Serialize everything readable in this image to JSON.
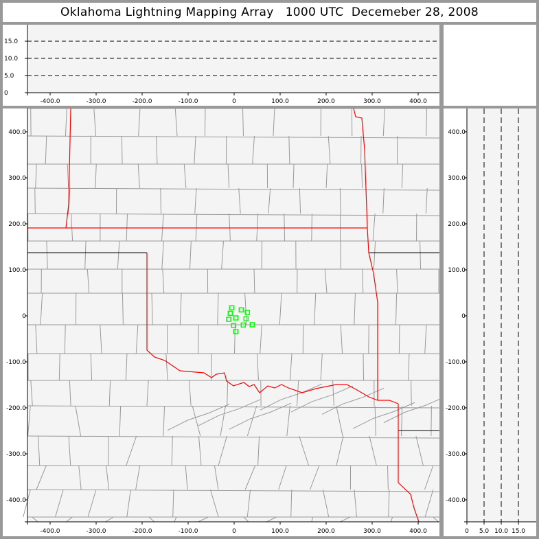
{
  "title": "Oklahoma Lightning Mapping Array   1000 UTC  Decemeber 28, 2008",
  "colors": {
    "background": "#999999",
    "plot_bg": "#f4f4f4",
    "county": "#999999",
    "state_border": "#ff0000",
    "source_marker": "#00ff00"
  },
  "top_panel": {
    "x_ticks": [
      "-400.0",
      "-300.0",
      "-200.0",
      "-100.0",
      "0",
      "100.0",
      "200.0",
      "300.0",
      "400.0"
    ],
    "y_ticks": [
      "0",
      "5.0",
      "10.0",
      "15.0"
    ],
    "gridlines": "dashed at 5, 10, 15"
  },
  "map_panel": {
    "x_ticks": [
      "-400.0",
      "-300.0",
      "-200.0",
      "-100.0",
      "0",
      "100.0",
      "200.0",
      "300.0",
      "400.0"
    ],
    "y_ticks": [
      "400.0",
      "300.0",
      "200.0",
      "100.0",
      "0",
      "-100.0",
      "-200.0",
      "-300.0",
      "-400.0"
    ]
  },
  "right_panel": {
    "x_ticks": [
      "0",
      "5.0",
      "10.0",
      "15.0"
    ],
    "y_ticks": [
      "400.0",
      "300.0",
      "200.0",
      "100.0",
      "0",
      "-100.0",
      "-200.0",
      "-300.0",
      "-400.0"
    ],
    "gridlines": "dashed at 5, 10, 15"
  },
  "chart_data": {
    "type": "scatter",
    "xlim": [
      -450,
      450
    ],
    "ylim": [
      -450,
      450
    ],
    "marker": "hollow-square",
    "points": [
      {
        "x": -5.5,
        "y": 17.5
      },
      {
        "x": 15.4,
        "y": 13.0
      },
      {
        "x": -8.5,
        "y": 5.5
      },
      {
        "x": 28.8,
        "y": 7.5
      },
      {
        "x": 3.4,
        "y": -4.5
      },
      {
        "x": -11.9,
        "y": -7.5
      },
      {
        "x": 25.8,
        "y": -6.4
      },
      {
        "x": -1.0,
        "y": -20.9
      },
      {
        "x": 19.9,
        "y": -19.9
      },
      {
        "x": 39.3,
        "y": -19.4
      },
      {
        "x": 3.4,
        "y": -34.3
      }
    ]
  }
}
